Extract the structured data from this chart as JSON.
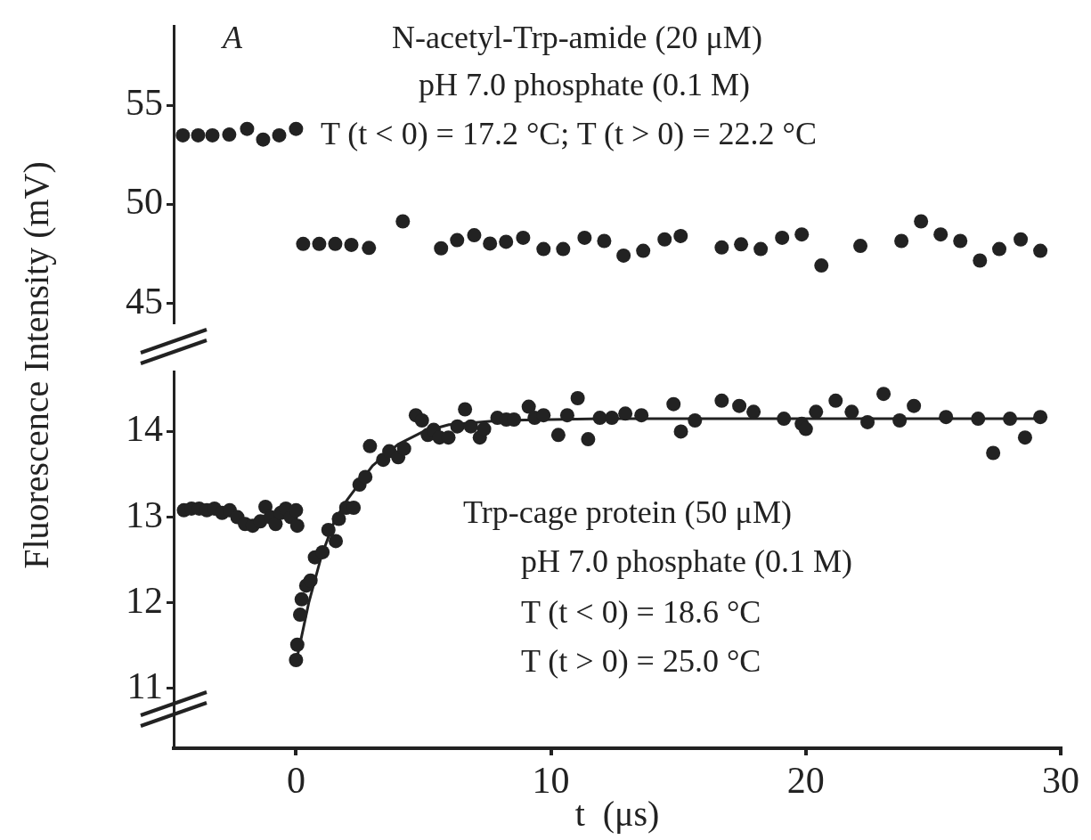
{
  "chart_data": [
    {
      "type": "scatter",
      "ylabel": "Fluorescence Intensity  (mV)",
      "xlim": [
        -4.8,
        30
      ],
      "ylim": [
        44,
        59
      ],
      "yticks": [
        45,
        50,
        55
      ],
      "tick_labels": "y",
      "grid": false,
      "marker": "circle",
      "annotations": [
        "A",
        "N-acetyl-Trp-amide (20 μM)",
        "pH 7.0 phosphate (0.1 M)",
        "T (t < 0) = 17.2 °C;  T (t > 0) = 22.2 °C"
      ],
      "series": [
        {
          "color": "#222222",
          "x": [
            -4.44,
            -3.84,
            -3.28,
            -2.62,
            -1.92,
            -1.29,
            -0.66,
            0,
            0.28,
            0.91,
            1.54,
            2.17,
            2.86,
            4.19,
            5.69,
            6.32,
            6.99,
            7.61,
            8.24,
            8.91,
            9.71,
            10.48,
            11.32,
            12.09,
            12.85,
            13.62,
            14.46,
            15.09,
            16.7,
            17.46,
            18.23,
            19.07,
            19.84,
            20.61,
            22.14,
            23.75,
            24.52,
            25.29,
            26.06,
            26.83,
            27.59,
            28.43,
            29.2
          ],
          "values": [
            53.48,
            53.48,
            53.48,
            53.52,
            53.81,
            53.27,
            53.48,
            53.81,
            48.0,
            48.0,
            48.0,
            47.95,
            47.8,
            49.14,
            47.78,
            48.19,
            48.44,
            48.02,
            48.11,
            48.31,
            47.74,
            47.74,
            48.31,
            48.15,
            47.41,
            47.65,
            48.23,
            48.4,
            47.82,
            47.98,
            47.74,
            48.31,
            48.48,
            46.91,
            47.9,
            48.15,
            49.14,
            48.48,
            48.15,
            47.16,
            47.74,
            48.23,
            47.65
          ]
        }
      ]
    },
    {
      "type": "scatter",
      "xlabel": "t  (μs)",
      "xlim": [
        -4.8,
        30
      ],
      "xticks": [
        0,
        10,
        20,
        30
      ],
      "ylim": [
        10.3,
        14.7
      ],
      "yticks": [
        11,
        12,
        13,
        14
      ],
      "grid": false,
      "marker": "circle",
      "annotations": [
        "Trp-cage protein (50 μM)",
        "pH 7.0 phosphate (0.1 M)",
        "T (t < 0) = 18.6 °C",
        "T (t > 0) = 25.0 °C"
      ],
      "series": [
        {
          "color": "#222222",
          "x": [
            -4.4,
            -4.1,
            -3.8,
            -3.5,
            -3.2,
            -2.9,
            -2.6,
            -2.3,
            -2.0,
            -1.7,
            -1.4,
            -1.2,
            -1.0,
            -0.8,
            -0.6,
            -0.4,
            -0.2,
            0,
            0.05,
            0.0,
            0.05,
            0.16,
            0.22,
            0.4,
            0.57,
            0.74,
            1.04,
            1.27,
            1.56,
            1.68,
            1.97,
            2.26,
            2.49,
            2.72,
            2.9,
            3.42,
            3.66,
            4.01,
            4.24,
            4.7,
            4.94,
            5.17,
            5.4,
            5.63,
            5.98,
            6.33,
            6.63,
            6.86,
            7.21,
            7.38,
            7.9,
            8.25,
            8.55,
            9.13,
            9.36,
            9.71,
            10.29,
            10.64,
            11.05,
            11.46,
            11.92,
            12.39,
            12.92,
            13.55,
            14.81,
            15.1,
            15.65,
            16.7,
            17.39,
            17.95,
            19.14,
            19.84,
            20.0,
            20.4,
            21.17,
            21.8,
            22.42,
            23.05,
            23.68,
            24.24,
            25.5,
            26.76,
            27.35,
            28.01,
            28.6,
            29.2
          ],
          "values": [
            13.08,
            13.1,
            13.1,
            13.08,
            13.1,
            13.05,
            13.08,
            13.0,
            12.92,
            12.9,
            12.95,
            13.12,
            13.0,
            12.92,
            13.05,
            13.1,
            13.0,
            13.08,
            12.9,
            11.33,
            11.51,
            11.86,
            12.04,
            12.2,
            12.26,
            12.53,
            12.59,
            12.85,
            12.72,
            12.98,
            13.11,
            13.11,
            13.38,
            13.47,
            13.83,
            13.67,
            13.77,
            13.7,
            13.8,
            14.19,
            14.13,
            13.96,
            14.02,
            13.93,
            13.93,
            14.06,
            14.26,
            14.06,
            13.93,
            14.03,
            14.16,
            14.14,
            14.14,
            14.29,
            14.16,
            14.19,
            13.96,
            14.19,
            14.39,
            13.91,
            14.16,
            14.16,
            14.21,
            14.19,
            14.32,
            14.0,
            14.13,
            14.36,
            14.3,
            14.23,
            14.15,
            14.09,
            14.03,
            14.23,
            14.36,
            14.23,
            14.11,
            14.44,
            14.13,
            14.3,
            14.17,
            14.15,
            13.75,
            14.15,
            13.93,
            14.17
          ]
        },
        {
          "type": "line",
          "color": "#222222",
          "marker": "none",
          "x": [
            0,
            0.5,
            1,
            1.5,
            2,
            3,
            4,
            5,
            6,
            8,
            12,
            29.3
          ],
          "values": [
            11.3,
            12.0,
            12.55,
            12.95,
            13.2,
            13.6,
            13.85,
            14.0,
            14.08,
            14.13,
            14.15,
            14.15
          ]
        }
      ]
    }
  ]
}
